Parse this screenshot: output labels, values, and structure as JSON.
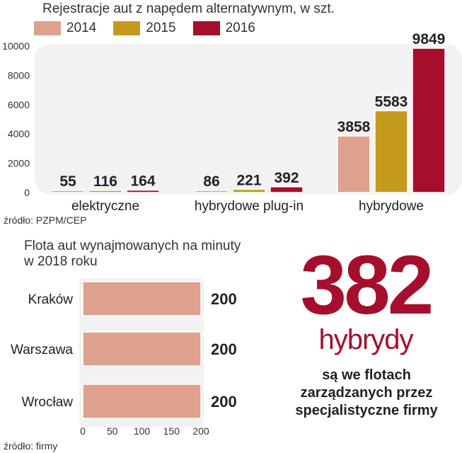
{
  "chart_data": [
    {
      "type": "bar",
      "title": "Rejestracje aut z napędem alternatywnym, w szt.",
      "categories": [
        "elektryczne",
        "hybrydowe plug-in",
        "hybrydowe"
      ],
      "series": [
        {
          "name": "2014",
          "color": "#dea18d",
          "values": [
            55,
            86,
            3858
          ]
        },
        {
          "name": "2015",
          "color": "#c49a1e",
          "values": [
            116,
            221,
            5583
          ]
        },
        {
          "name": "2016",
          "color": "#a50e2d",
          "values": [
            164,
            392,
            9849
          ]
        }
      ],
      "yticks": [
        "0",
        "2000",
        "4000",
        "6000",
        "8000",
        "10000"
      ],
      "ylim": [
        0,
        10000
      ],
      "grid": false,
      "legend_position": "top",
      "source": "źródło: PZPM/CEP"
    },
    {
      "type": "bar",
      "orientation": "horizontal",
      "title_lines": [
        "Flota aut wynajmowanych na minuty",
        "w 2018 roku"
      ],
      "categories": [
        "Kraków",
        "Warszawa",
        "Wrocław"
      ],
      "values": [
        200,
        200,
        200
      ],
      "value_labels": [
        "200",
        "200",
        "200"
      ],
      "bar_color": "#dea18d",
      "xticks": [
        "0",
        "50",
        "100",
        "150",
        "200"
      ],
      "xlim": [
        0,
        200
      ],
      "source": "źródło: firmy"
    }
  ],
  "highlight": {
    "number": "382",
    "label": "hybrydy",
    "description_lines": [
      "są we flotach",
      "zarządzanych przez",
      "specjalistyczne firmy"
    ],
    "color": "#a50e2d"
  }
}
